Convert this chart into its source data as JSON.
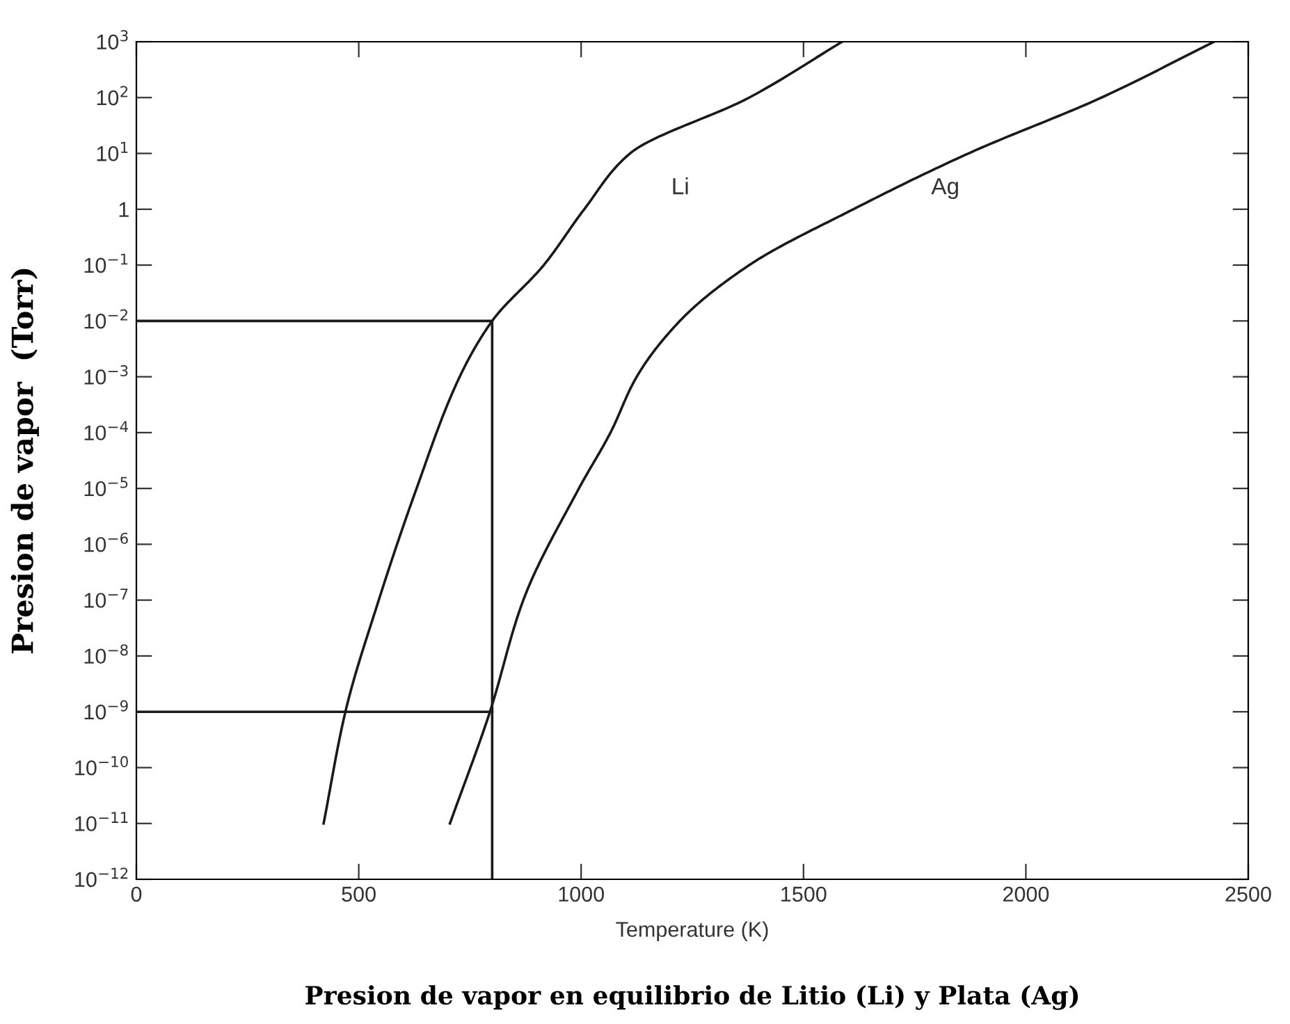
{
  "chart_data": {
    "type": "line",
    "title": "Presion de vapor en equilibrio de Litio (Li) y Plata (Ag)",
    "xlabel": "Temperature (K)",
    "ylabel": "Presion de vapor  (Torr)",
    "log": "y",
    "xlim": [
      0,
      2500
    ],
    "xticks": [
      0,
      500,
      1000,
      1500,
      2000,
      2500
    ],
    "ylim": [
      1e-12,
      1000
    ],
    "yticks": [
      {
        "value": 1e-12,
        "label": "10$^{−12}$"
      },
      {
        "value": 1e-11,
        "label": "10$^{−11}$"
      },
      {
        "value": 1e-10,
        "label": "10$^{−10}$"
      },
      {
        "value": 1e-09,
        "label": "10$^{−9}$"
      },
      {
        "value": 1e-08,
        "label": "10$^{−8}$"
      },
      {
        "value": 1e-07,
        "label": "10$^{−7}$"
      },
      {
        "value": 1e-06,
        "label": "10$^{−6}$"
      },
      {
        "value": 1e-05,
        "label": "10$^{−5}$"
      },
      {
        "value": 0.0001,
        "label": "10$^{−4}$"
      },
      {
        "value": 0.001,
        "label": "10$^{−3}$"
      },
      {
        "value": 0.01,
        "label": "10$^{−2}$"
      },
      {
        "value": 0.1,
        "label": "10$^{−1}$"
      },
      {
        "value": 1,
        "label": "1"
      },
      {
        "value": 10,
        "label": "10$^{1}$"
      },
      {
        "value": 100,
        "label": "10$^{2}$"
      },
      {
        "value": 1000,
        "label": "10$^{3}$"
      }
    ],
    "grid": false,
    "legend": false,
    "marker": "none",
    "line_style": "solid",
    "series": [
      {
        "name": "Li",
        "color": "#1a1a1a",
        "x": [
          421,
          470,
          545,
          630,
          727,
          800,
          916,
          1007,
          1110,
          1378,
          1587
        ],
        "values": [
          1e-11,
          1e-09,
          1e-07,
          1e-05,
          0.001,
          0.01,
          0.1,
          1,
          10,
          100,
          1000
        ]
      },
      {
        "name": "Ag",
        "color": "#1a1a1a",
        "x": [
          705,
          795,
          870,
          995,
          1066,
          1125,
          1222,
          1378,
          1612,
          1871,
          2170,
          2423
        ],
        "values": [
          1e-11,
          1e-09,
          1e-07,
          1e-05,
          0.0001,
          0.001,
          0.01,
          0.1,
          1,
          10,
          100,
          1000
        ]
      },
      {
        "color": "#1a1a1a",
        "x": [
          0,
          800,
          800
        ],
        "values": [
          0.01,
          0.01,
          1e-12
        ]
      },
      {
        "color": "#1a1a1a",
        "x": [
          0,
          800
        ],
        "values": [
          1e-09,
          1e-09
        ]
      }
    ]
  }
}
